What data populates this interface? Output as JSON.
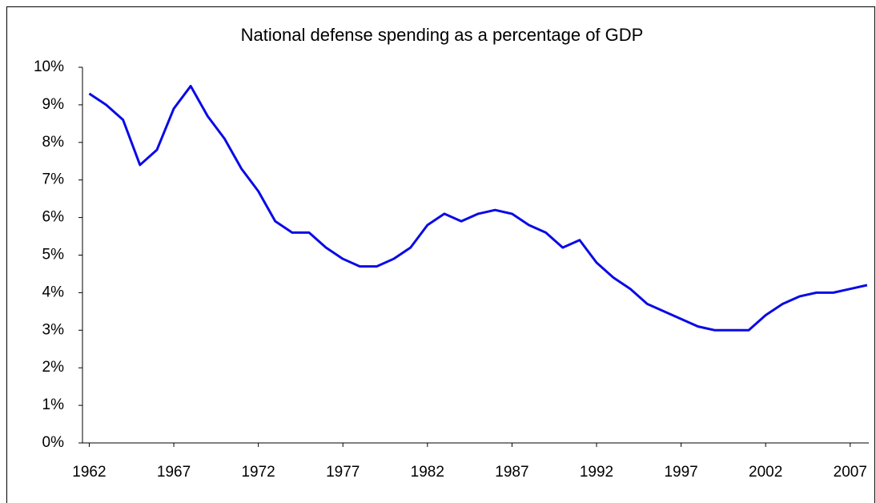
{
  "chart_data": {
    "type": "line",
    "title": "National defense spending as a percentage of GDP",
    "x": [
      1962,
      1963,
      1964,
      1965,
      1966,
      1967,
      1968,
      1969,
      1970,
      1971,
      1972,
      1973,
      1974,
      1975,
      1976,
      1977,
      1978,
      1979,
      1980,
      1981,
      1982,
      1983,
      1984,
      1985,
      1986,
      1987,
      1988,
      1989,
      1990,
      1991,
      1992,
      1993,
      1994,
      1995,
      1996,
      1997,
      1998,
      1999,
      2000,
      2001,
      2002,
      2003,
      2004,
      2005,
      2006,
      2007,
      2008
    ],
    "series": [
      {
        "color": "#0a0ae6",
        "values": [
          9.3,
          9.0,
          8.6,
          7.4,
          7.8,
          8.9,
          9.5,
          8.7,
          8.1,
          7.3,
          6.7,
          5.9,
          5.6,
          5.6,
          5.2,
          4.9,
          4.7,
          4.7,
          4.9,
          5.2,
          5.8,
          6.1,
          5.9,
          6.1,
          6.2,
          6.1,
          5.8,
          5.6,
          5.2,
          5.4,
          4.8,
          4.4,
          4.1,
          3.7,
          3.5,
          3.3,
          3.1,
          3.0,
          3.0,
          3.0,
          3.4,
          3.7,
          3.9,
          4.0,
          4.0,
          4.1,
          4.2
        ]
      }
    ],
    "xlim": [
      1961.6,
      2008.1
    ],
    "xticks": [
      1962,
      1967,
      1972,
      1977,
      1982,
      1987,
      1992,
      1997,
      2002,
      2007
    ],
    "ylim": [
      0,
      10
    ],
    "yticks": [
      {
        "value": 0,
        "label": "0%"
      },
      {
        "value": 1,
        "label": "1%"
      },
      {
        "value": 2,
        "label": "2%"
      },
      {
        "value": 3,
        "label": "3%"
      },
      {
        "value": 4,
        "label": "4%"
      },
      {
        "value": 5,
        "label": "5%"
      },
      {
        "value": 6,
        "label": "6%"
      },
      {
        "value": 7,
        "label": "7%"
      },
      {
        "value": 8,
        "label": "8%"
      },
      {
        "value": 9,
        "label": "9%"
      },
      {
        "value": 10,
        "label": "10%"
      }
    ],
    "grid": false
  }
}
